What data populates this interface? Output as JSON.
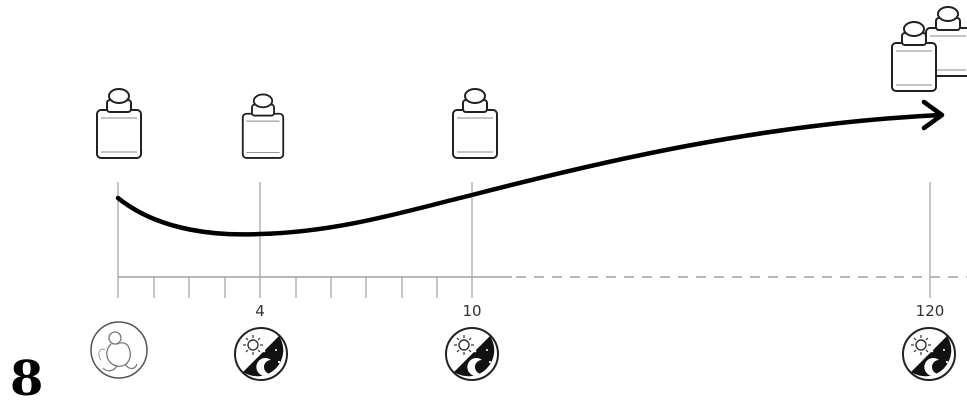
{
  "figure_number": "8",
  "tick_labels": {
    "t4": "4",
    "t10": "10",
    "t120": "120"
  },
  "icons": {
    "start": "newborn-baby-icon",
    "day_night": "day-night-icon",
    "weight": "weight-icon"
  },
  "colors": {
    "line": "#000000",
    "axis": "#a0a0a0",
    "icon_stroke": "#333333"
  }
}
